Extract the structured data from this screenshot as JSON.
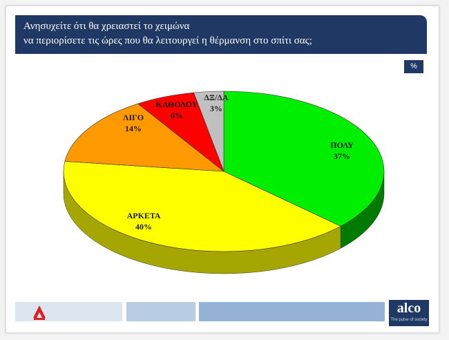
{
  "header": {
    "title_line1": "Ανησυχείτε ότι θα χρειαστεί το χειμώνα",
    "title_line2": "να περιορίσετε τις ώρες που θα λειτουργεί η θέρμανση στο σπίτι σας;",
    "unit_badge": "%"
  },
  "chart_data": {
    "type": "pie",
    "title": "Ανησυχείτε ότι θα χρειαστεί το χειμώνα να περιορίσετε τις ώρες που θα λειτουργεί η θέρμανση στο σπίτι σας;",
    "categories": [
      "ΠΟΛΥ",
      "ΑΡΚΕΤΑ",
      "ΛΙΓΟ",
      "ΚΑΘΟΛΟΥ",
      "ΔΞ/ΔΑ"
    ],
    "values": [
      37,
      40,
      14,
      6,
      3
    ],
    "value_labels": [
      "37%",
      "40%",
      "14%",
      "6%",
      "3%"
    ],
    "colors": [
      "#00ee00",
      "#ffff00",
      "#ff9900",
      "#ff0000",
      "#c0c0c0"
    ],
    "dark_colors": [
      "#007a00",
      "#a6a600",
      "#b56a00",
      "#a00000",
      "#7f7f7f"
    ],
    "style": "3d-tilted",
    "start": "12 o'clock",
    "direction": "clockwise"
  },
  "footer": {
    "brand": "alco",
    "tagline": "The pulse of society",
    "bar_colors": [
      "#dce6f1",
      "#b8cce4",
      "#95b3d7"
    ]
  }
}
